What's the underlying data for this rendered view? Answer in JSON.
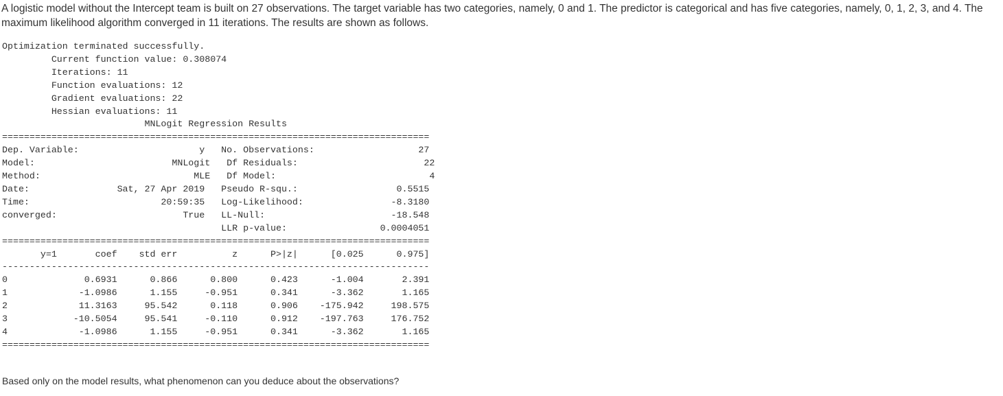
{
  "intro_text": "A logistic model without the Intercept team is built on 27 observations.  The target variable has two categories, namely, 0 and 1.  The predictor is categorical and has five categories, namely, 0, 1, 2, 3, and 4.  The maximum likelihood algorithm converged in 11 iterations.  The results are shown as follows.",
  "optimization": {
    "header": "Optimization terminated successfully.",
    "lines": [
      "         Current function value: 0.308074",
      "         Iterations: 11",
      "         Function evaluations: 12",
      "         Gradient evaluations: 22",
      "         Hessian evaluations: 11"
    ]
  },
  "regression": {
    "title_line": "                          MNLogit Regression Results",
    "rule_double": "==============================================================================",
    "rule_single": "------------------------------------------------------------------------------",
    "summary_rows": [
      "Dep. Variable:                      y   No. Observations:                   27",
      "Model:                         MNLogit   Df Residuals:                       22",
      "Method:                            MLE   Df Model:                            4",
      "Date:                Sat, 27 Apr 2019   Pseudo R-squ.:                  0.5515",
      "Time:                        20:59:35   Log-Likelihood:                -8.3180",
      "converged:                       True   LL-Null:                       -18.548",
      "                                        LLR p-value:                 0.0004051"
    ],
    "coef_header": "       y=1       coef    std err          z      P>|z|      [0.025      0.975]",
    "coef_rows": [
      "0              0.6931      0.866      0.800      0.423      -1.004       2.391",
      "1             -1.0986      1.155     -0.951      0.341      -3.362       1.165",
      "2             11.3163     95.542      0.118      0.906    -175.942     198.575",
      "3            -10.5054     95.541     -0.110      0.912    -197.763     176.752",
      "4             -1.0986      1.155     -0.951      0.341      -3.362       1.165"
    ]
  },
  "question_text": "Based only on the model results, what phenomenon can you deduce about the observations?"
}
